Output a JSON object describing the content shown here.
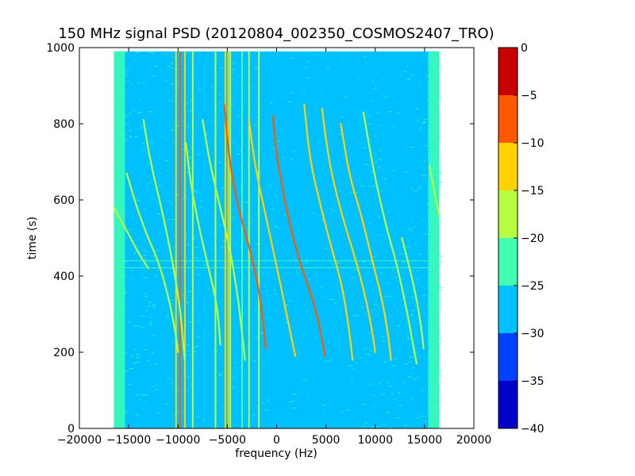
{
  "chart_data": {
    "type": "heatmap",
    "title": "150 MHz signal PSD (20120804_002350_COSMOS2407_TRO)",
    "xlabel": "frequency (Hz)",
    "ylabel": "time (s)",
    "xlim": [
      -20000,
      20000
    ],
    "ylim": [
      0,
      1000
    ],
    "x_ticks": [
      -20000,
      -15000,
      -10000,
      -5000,
      0,
      5000,
      10000,
      15000,
      20000
    ],
    "x_tick_labels": [
      "−20000",
      "−15000",
      "−10000",
      "−5000",
      "0",
      "5000",
      "10000",
      "15000",
      "20000"
    ],
    "y_ticks": [
      0,
      200,
      400,
      600,
      800,
      1000
    ],
    "y_tick_labels": [
      "0",
      "200",
      "400",
      "600",
      "800",
      "1000"
    ],
    "data_extent": {
      "x": [
        -16500,
        16500
      ],
      "y": [
        0,
        990
      ]
    },
    "background_level": -27,
    "edge_level": -23,
    "vertical_lines": [
      {
        "x": -10200,
        "level": -13
      },
      {
        "x": -9800,
        "level": -10
      },
      {
        "x": -9300,
        "level": -12
      },
      {
        "x": -8500,
        "level": -17
      },
      {
        "x": -6200,
        "level": -20
      },
      {
        "x": -5200,
        "level": -13
      },
      {
        "x": -4900,
        "level": -15
      },
      {
        "x": -4700,
        "level": -18
      },
      {
        "x": -3500,
        "level": -21
      },
      {
        "x": -2800,
        "level": -17
      },
      {
        "x": -1800,
        "level": -17
      }
    ],
    "traces": [
      {
        "points": [
          [
            -16500,
            580
          ],
          [
            -15000,
            510
          ],
          [
            -14000,
            460
          ],
          [
            -13000,
            420
          ]
        ],
        "level": -17
      },
      {
        "points": [
          [
            -15200,
            670
          ],
          [
            -14300,
            590
          ],
          [
            -13200,
            510
          ],
          [
            -12000,
            440
          ],
          [
            -11000,
            350
          ],
          [
            -10300,
            260
          ],
          [
            -10000,
            200
          ]
        ],
        "level": -17
      },
      {
        "points": [
          [
            -13500,
            810
          ],
          [
            -12800,
            700
          ],
          [
            -11500,
            560
          ],
          [
            -10500,
            430
          ],
          [
            -9800,
            320
          ],
          [
            -9500,
            230
          ],
          [
            -9300,
            180
          ]
        ],
        "level": -18
      },
      {
        "points": [
          [
            -9200,
            750
          ],
          [
            -8700,
            640
          ],
          [
            -7800,
            520
          ],
          [
            -6800,
            410
          ],
          [
            -6000,
            320
          ],
          [
            -5700,
            220
          ]
        ],
        "level": -17
      },
      {
        "points": [
          [
            -7500,
            810
          ],
          [
            -6800,
            700
          ],
          [
            -5800,
            590
          ],
          [
            -4800,
            480
          ],
          [
            -4000,
            360
          ],
          [
            -3500,
            250
          ],
          [
            -3200,
            180
          ]
        ],
        "level": -16
      },
      {
        "points": [
          [
            -5300,
            850
          ],
          [
            -4800,
            700
          ],
          [
            -3800,
            570
          ],
          [
            -2700,
            470
          ],
          [
            -1900,
            380
          ],
          [
            -1400,
            290
          ],
          [
            -1100,
            210
          ]
        ],
        "level": -10
      },
      {
        "points": [
          [
            -2800,
            810
          ],
          [
            -2200,
            690
          ],
          [
            -1200,
            570
          ],
          [
            -200,
            450
          ],
          [
            700,
            340
          ],
          [
            1400,
            250
          ],
          [
            1900,
            190
          ]
        ],
        "level": -12
      },
      {
        "points": [
          [
            -400,
            820
          ],
          [
            100,
            700
          ],
          [
            1100,
            560
          ],
          [
            2400,
            430
          ],
          [
            3700,
            340
          ],
          [
            4500,
            250
          ],
          [
            4900,
            190
          ]
        ],
        "level": -7
      },
      {
        "points": [
          [
            2800,
            850
          ],
          [
            3400,
            700
          ],
          [
            4500,
            580
          ],
          [
            5600,
            470
          ],
          [
            6600,
            380
          ],
          [
            7300,
            270
          ],
          [
            7700,
            180
          ]
        ],
        "level": -12
      },
      {
        "points": [
          [
            4600,
            840
          ],
          [
            5300,
            700
          ],
          [
            6500,
            570
          ],
          [
            7700,
            470
          ],
          [
            8800,
            370
          ],
          [
            9600,
            270
          ],
          [
            10000,
            200
          ]
        ],
        "level": -13
      },
      {
        "points": [
          [
            6500,
            800
          ],
          [
            7400,
            660
          ],
          [
            8600,
            560
          ],
          [
            9700,
            440
          ],
          [
            10600,
            350
          ],
          [
            11300,
            250
          ],
          [
            11600,
            180
          ]
        ],
        "level": -15
      },
      {
        "points": [
          [
            8800,
            830
          ],
          [
            9800,
            680
          ],
          [
            11000,
            540
          ],
          [
            12200,
            430
          ],
          [
            13200,
            310
          ],
          [
            13900,
            210
          ],
          [
            14200,
            170
          ]
        ],
        "level": -17
      },
      {
        "points": [
          [
            12700,
            500
          ],
          [
            13500,
            420
          ],
          [
            14200,
            340
          ],
          [
            14700,
            260
          ],
          [
            14900,
            210
          ]
        ],
        "level": -19
      },
      {
        "points": [
          [
            15500,
            690
          ],
          [
            16000,
            620
          ],
          [
            16500,
            560
          ]
        ],
        "level": -18
      }
    ],
    "horizontal_lines": [
      {
        "y": 422,
        "level": -21
      },
      {
        "y": 440,
        "level": -21
      }
    ],
    "colorbar": {
      "range": [
        -40,
        0
      ],
      "ticks": [
        0,
        -5,
        -10,
        -15,
        -20,
        -25,
        -30,
        -35,
        -40
      ],
      "tick_labels": [
        "0",
        "−5",
        "−10",
        "−15",
        "−20",
        "−25",
        "−30",
        "−35",
        "−40"
      ],
      "bands": [
        {
          "from": -40,
          "to": -35,
          "color": "#0000c8"
        },
        {
          "from": -35,
          "to": -30,
          "color": "#0040ff"
        },
        {
          "from": -30,
          "to": -25,
          "color": "#00c0ff"
        },
        {
          "from": -25,
          "to": -20,
          "color": "#40ffb5"
        },
        {
          "from": -20,
          "to": -15,
          "color": "#b5ff40"
        },
        {
          "from": -15,
          "to": -10,
          "color": "#ffd200"
        },
        {
          "from": -10,
          "to": -5,
          "color": "#ff5800"
        },
        {
          "from": -5,
          "to": 0,
          "color": "#c80000"
        }
      ]
    }
  }
}
